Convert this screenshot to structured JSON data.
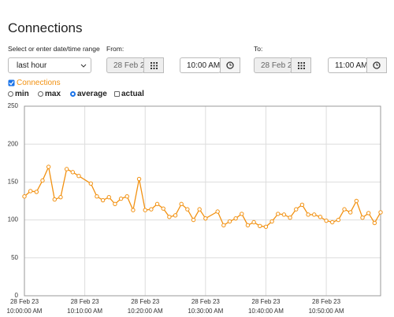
{
  "header": {
    "title": "Connections"
  },
  "controls": {
    "range_label": "Select or enter date/time range",
    "range_value": "last hour",
    "from_label": "From:",
    "from_date": "28 Feb 2",
    "from_time": "10:00 AM",
    "to_label": "To:",
    "to_date": "28 Feb 2",
    "to_time": "11:00 AM",
    "series_checkbox": "Connections",
    "options": [
      "min",
      "max",
      "average",
      "actual"
    ]
  },
  "chart_data": {
    "type": "line",
    "x": [
      0,
      1,
      2,
      3,
      4,
      5,
      6,
      7,
      8,
      9,
      11,
      12,
      13,
      14,
      15,
      16,
      17,
      18,
      19,
      20,
      21,
      22,
      23,
      24,
      25,
      26,
      27,
      28,
      29,
      30,
      32,
      33,
      34,
      35,
      36,
      37,
      38,
      39,
      40,
      41,
      42,
      43,
      44,
      45,
      46,
      47,
      48,
      49,
      50,
      51,
      52,
      53,
      54,
      55,
      56,
      57,
      58,
      59
    ],
    "series": [
      {
        "name": "Connections",
        "color": "#f29111",
        "values": [
          131,
          138,
          137,
          152,
          170,
          127,
          130,
          167,
          163,
          158,
          148,
          131,
          126,
          130,
          121,
          128,
          131,
          113,
          154,
          113,
          114,
          121,
          115,
          104,
          106,
          121,
          114,
          100,
          114,
          102,
          111,
          93,
          98,
          102,
          108,
          93,
          97,
          92,
          91,
          98,
          108,
          107,
          103,
          114,
          120,
          107,
          107,
          104,
          99,
          97,
          100,
          114,
          110,
          125,
          103,
          109,
          96,
          110
        ]
      }
    ],
    "xlim": [
      0,
      59
    ],
    "xticks": [
      {
        "value": 0,
        "label": "28 Feb 23 10:00:00 AM"
      },
      {
        "value": 10,
        "label": "28 Feb 23 10:10:00 AM"
      },
      {
        "value": 20,
        "label": "28 Feb 23 10:20:00 AM"
      },
      {
        "value": 30,
        "label": "28 Feb 23 10:30:00 AM"
      },
      {
        "value": 40,
        "label": "28 Feb 23 10:40:00 AM"
      },
      {
        "value": 50,
        "label": "28 Feb 23 10:50:00 AM"
      }
    ],
    "ylim": [
      0,
      250
    ],
    "yticks": [
      0,
      50,
      100,
      150,
      200,
      250
    ],
    "grid": true
  }
}
